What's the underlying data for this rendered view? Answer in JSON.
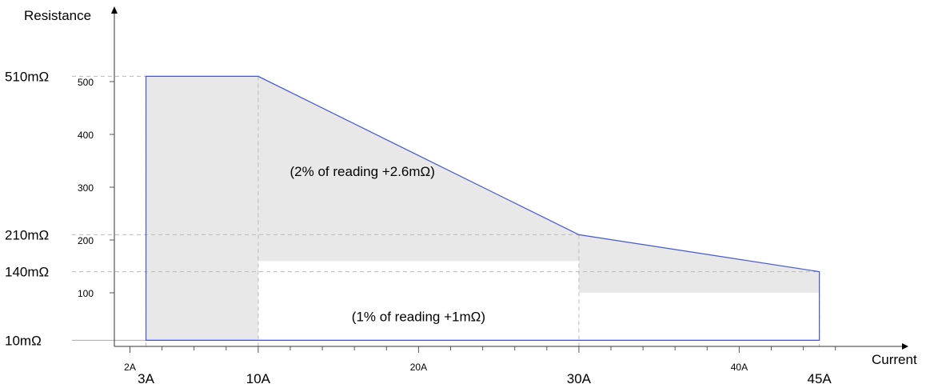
{
  "chart_data": {
    "type": "area",
    "xlabel": "Current",
    "ylabel": "Resistance",
    "xlim": [
      1,
      46
    ],
    "ylim": [
      0,
      560
    ],
    "x_major_ticks": [
      "2A",
      "20A",
      "40A"
    ],
    "x_key_ticks": [
      "3A",
      "10A",
      "30A",
      "45A"
    ],
    "y_ticks": [
      "100",
      "200",
      "300",
      "400",
      "500"
    ],
    "y_key_ticks": [
      "510mΩ",
      "210mΩ",
      "140mΩ",
      "10mΩ"
    ],
    "series": [
      {
        "x": [
          3,
          3,
          10,
          30,
          45,
          45
        ],
        "y": [
          10,
          510,
          510,
          210,
          140,
          10
        ]
      }
    ],
    "inner_region": {
      "x": [
        10,
        10,
        30,
        30,
        45,
        45
      ],
      "y": [
        10,
        160,
        160,
        100,
        100,
        10
      ]
    },
    "annotations": [
      {
        "text": "(2% of reading +2.6mΩ)",
        "x": 16.5,
        "y": 330
      },
      {
        "text": "(1% of reading +1mΩ)",
        "x": 20,
        "y": 55
      }
    ],
    "line_color": "#4455dd",
    "fill_color": "#e8e8e8"
  }
}
